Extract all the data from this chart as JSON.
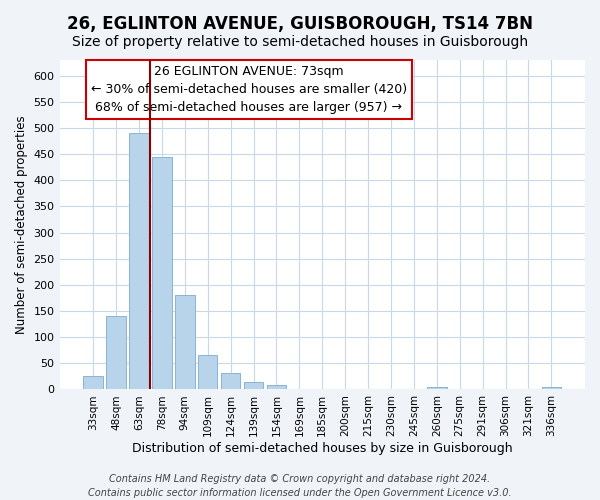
{
  "title": "26, EGLINTON AVENUE, GUISBOROUGH, TS14 7BN",
  "subtitle": "Size of property relative to semi-detached houses in Guisborough",
  "xlabel": "Distribution of semi-detached houses by size in Guisborough",
  "ylabel": "Number of semi-detached properties",
  "footer_lines": [
    "Contains HM Land Registry data © Crown copyright and database right 2024.",
    "Contains public sector information licensed under the Open Government Licence v3.0."
  ],
  "annotation_title": "26 EGLINTON AVENUE: 73sqm",
  "annotation_line1": "← 30% of semi-detached houses are smaller (420)",
  "annotation_line2": "68% of semi-detached houses are larger (957) →",
  "bar_labels": [
    "33sqm",
    "48sqm",
    "63sqm",
    "78sqm",
    "94sqm",
    "109sqm",
    "124sqm",
    "139sqm",
    "154sqm",
    "169sqm",
    "185sqm",
    "200sqm",
    "215sqm",
    "230sqm",
    "245sqm",
    "260sqm",
    "275sqm",
    "291sqm",
    "306sqm",
    "321sqm",
    "336sqm"
  ],
  "bar_values": [
    25,
    140,
    490,
    445,
    180,
    65,
    32,
    15,
    8,
    0,
    0,
    0,
    0,
    0,
    0,
    4,
    0,
    0,
    0,
    0,
    4
  ],
  "bar_color": "#b8d4ea",
  "bar_edge_color": "#8ab4d4",
  "marker_bar_index": 2,
  "marker_color": "#8b0000",
  "ylim": [
    0,
    630
  ],
  "yticks": [
    0,
    50,
    100,
    150,
    200,
    250,
    300,
    350,
    400,
    450,
    500,
    550,
    600
  ],
  "bg_color": "#f0f4f9",
  "plot_bg_color": "#ffffff",
  "grid_color": "#c8d8e8",
  "annotation_box_color": "#ffffff",
  "annotation_box_edge": "#cc0000",
  "title_fontsize": 12,
  "subtitle_fontsize": 10,
  "annotation_fontsize": 9,
  "footer_fontsize": 7
}
